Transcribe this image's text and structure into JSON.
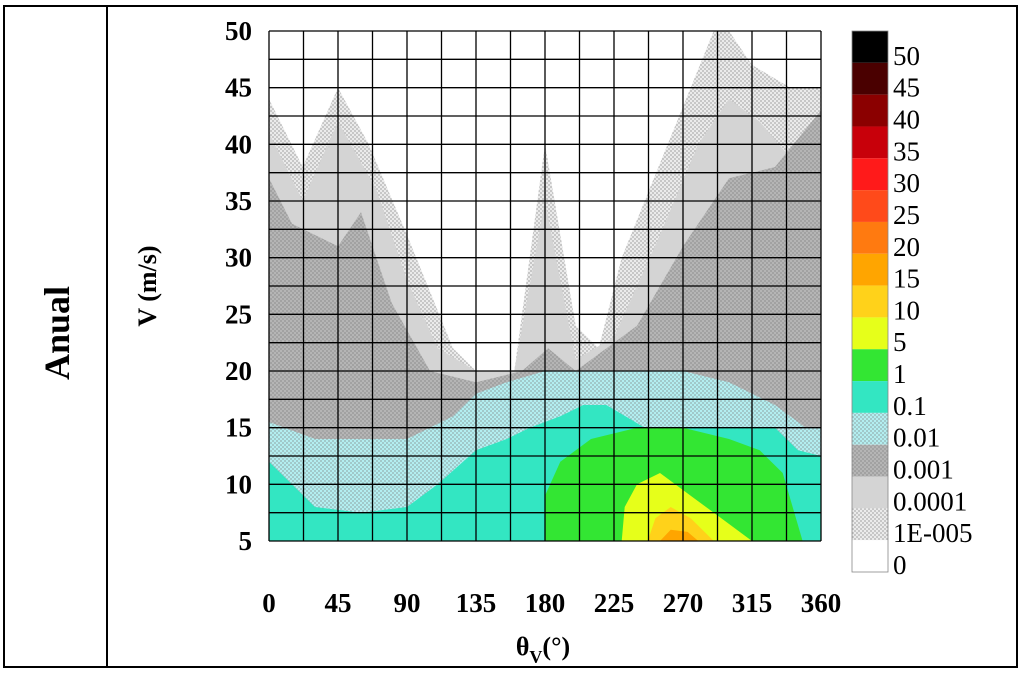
{
  "row_label": "Anual",
  "chart_data": {
    "type": "heatmap",
    "subtype": "filled-contour",
    "xlabel": "θv(°)",
    "xlabel_main": "θ",
    "xlabel_sub": "V",
    "xlabel_suffix": "(°)",
    "ylabel": "V (m/s)",
    "xlim": [
      0,
      360
    ],
    "ylim": [
      5,
      50
    ],
    "x_ticks": [
      0,
      45,
      90,
      135,
      180,
      225,
      270,
      315,
      360
    ],
    "y_ticks": [
      5,
      10,
      15,
      20,
      25,
      30,
      35,
      40,
      45,
      50
    ],
    "grid": true,
    "grid_step_x": 22.5,
    "grid_step_y": 2.5,
    "colorbar": {
      "placement": "right",
      "labels": [
        "50",
        "45",
        "40",
        "35",
        "30",
        "25",
        "20",
        "15",
        "10",
        "5",
        "1",
        "0.1",
        "0.01",
        "0.001",
        "0.0001",
        "1E-005",
        "0"
      ],
      "bands": [
        {
          "level": "50",
          "color": "#000000"
        },
        {
          "level": "45",
          "color": "#4a0000"
        },
        {
          "level": "40",
          "color": "#8b0000"
        },
        {
          "level": "35",
          "color": "#c8000a"
        },
        {
          "level": "30",
          "color": "#ff1a1a"
        },
        {
          "level": "25",
          "color": "#ff4a1a"
        },
        {
          "level": "20",
          "color": "#ff7a10"
        },
        {
          "level": "15",
          "color": "#ffa500"
        },
        {
          "level": "10",
          "color": "#ffd21a"
        },
        {
          "level": "5",
          "color": "#e6ff1a"
        },
        {
          "level": "1",
          "color": "#33e633"
        },
        {
          "level": "0.1",
          "color": "#33e6c2"
        },
        {
          "level": "0.01",
          "color": "#b3eef0",
          "pattern": "dots"
        },
        {
          "level": "0.001",
          "color": "#b5b5b5",
          "pattern": "dots"
        },
        {
          "level": "0.0001",
          "color": "#d4d4d4"
        },
        {
          "level": "1E-005",
          "color": "#ebebeb",
          "pattern": "dots"
        },
        {
          "level": "0",
          "color": "#ffffff"
        }
      ]
    },
    "regions": [
      {
        "level": "1E-005",
        "points": [
          [
            0,
            44
          ],
          [
            22,
            38
          ],
          [
            45,
            45
          ],
          [
            65,
            40
          ],
          [
            90,
            32
          ],
          [
            120,
            22
          ],
          [
            135,
            20
          ],
          [
            160,
            20
          ],
          [
            180,
            40
          ],
          [
            200,
            24
          ],
          [
            215,
            22
          ],
          [
            230,
            30
          ],
          [
            260,
            40
          ],
          [
            290,
            50
          ],
          [
            300,
            50
          ],
          [
            315,
            47
          ],
          [
            340,
            45
          ],
          [
            360,
            45
          ],
          [
            360,
            5
          ],
          [
            0,
            5
          ]
        ]
      },
      {
        "level": "0.0001",
        "points": [
          [
            0,
            41
          ],
          [
            22,
            35
          ],
          [
            45,
            42
          ],
          [
            70,
            36
          ],
          [
            90,
            28
          ],
          [
            110,
            22
          ],
          [
            135,
            20
          ],
          [
            160,
            20
          ],
          [
            180,
            35
          ],
          [
            200,
            21
          ],
          [
            225,
            23
          ],
          [
            255,
            32
          ],
          [
            280,
            40
          ],
          [
            300,
            44
          ],
          [
            320,
            42
          ],
          [
            345,
            38
          ],
          [
            360,
            40
          ],
          [
            360,
            5
          ],
          [
            0,
            5
          ]
        ]
      },
      {
        "level": "0.001",
        "points": [
          [
            0,
            37
          ],
          [
            15,
            33
          ],
          [
            45,
            31
          ],
          [
            60,
            34
          ],
          [
            80,
            26
          ],
          [
            105,
            20
          ],
          [
            135,
            19
          ],
          [
            165,
            20
          ],
          [
            182,
            22
          ],
          [
            200,
            20
          ],
          [
            240,
            24
          ],
          [
            270,
            31
          ],
          [
            300,
            37
          ],
          [
            330,
            38
          ],
          [
            360,
            43
          ],
          [
            360,
            5
          ],
          [
            0,
            5
          ]
        ]
      },
      {
        "level": "0.01",
        "points": [
          [
            0,
            15.5
          ],
          [
            30,
            14
          ],
          [
            90,
            14
          ],
          [
            120,
            16
          ],
          [
            135,
            18
          ],
          [
            155,
            19
          ],
          [
            180,
            20
          ],
          [
            220,
            20
          ],
          [
            245,
            20
          ],
          [
            270,
            20
          ],
          [
            300,
            19
          ],
          [
            330,
            17
          ],
          [
            350,
            15
          ],
          [
            360,
            15
          ],
          [
            360,
            5
          ],
          [
            0,
            5
          ]
        ]
      },
      {
        "level": "0.1",
        "points": [
          [
            0,
            12
          ],
          [
            30,
            8
          ],
          [
            60,
            7.5
          ],
          [
            90,
            8
          ],
          [
            110,
            10
          ],
          [
            135,
            13
          ],
          [
            155,
            14
          ],
          [
            170,
            15
          ],
          [
            190,
            16
          ],
          [
            205,
            17
          ],
          [
            220,
            17
          ],
          [
            245,
            15
          ],
          [
            270,
            15
          ],
          [
            300,
            15
          ],
          [
            330,
            15
          ],
          [
            345,
            13
          ],
          [
            360,
            12.5
          ],
          [
            360,
            5
          ],
          [
            0,
            5
          ]
        ]
      },
      {
        "level": "1",
        "points": [
          [
            180,
            5
          ],
          [
            180,
            9
          ],
          [
            190,
            12
          ],
          [
            210,
            14
          ],
          [
            240,
            15
          ],
          [
            270,
            15
          ],
          [
            300,
            14
          ],
          [
            320,
            13
          ],
          [
            335,
            11
          ],
          [
            348,
            5
          ]
        ]
      },
      {
        "level": "5",
        "points": [
          [
            230,
            5
          ],
          [
            232,
            8
          ],
          [
            240,
            10
          ],
          [
            255,
            11
          ],
          [
            275,
            9
          ],
          [
            295,
            7
          ],
          [
            315,
            5
          ]
        ]
      },
      {
        "level": "10",
        "points": [
          [
            247,
            5
          ],
          [
            252,
            7
          ],
          [
            262,
            8
          ],
          [
            275,
            7
          ],
          [
            290,
            5
          ]
        ]
      },
      {
        "level": "15",
        "points": [
          [
            255,
            5
          ],
          [
            262,
            6
          ],
          [
            273,
            5.8
          ],
          [
            280,
            5
          ]
        ]
      }
    ]
  }
}
